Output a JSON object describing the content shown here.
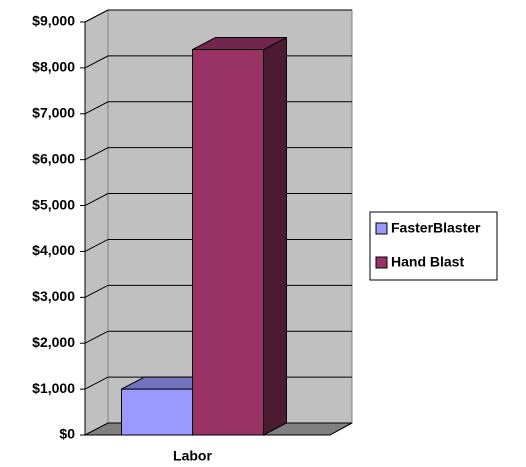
{
  "chart_data": {
    "type": "bar3d",
    "categories": [
      "Labor"
    ],
    "series": [
      {
        "name": "FasterBlaster",
        "color": "#9999ff",
        "values": [
          1000
        ]
      },
      {
        "name": "Hand Blast",
        "color": "#993366",
        "values": [
          8400
        ]
      }
    ],
    "ylim": [
      0,
      9000
    ],
    "yticks": [
      {
        "value": 0,
        "label": "$0"
      },
      {
        "value": 1000,
        "label": "$1,000"
      },
      {
        "value": 2000,
        "label": "$2,000"
      },
      {
        "value": 3000,
        "label": "$3,000"
      },
      {
        "value": 4000,
        "label": "$4,000"
      },
      {
        "value": 5000,
        "label": "$5,000"
      },
      {
        "value": 6000,
        "label": "$6,000"
      },
      {
        "value": 7000,
        "label": "$7,000"
      },
      {
        "value": 8000,
        "label": "$8,000"
      },
      {
        "value": 9000,
        "label": "$9,000"
      }
    ],
    "grid": true,
    "legend": "right"
  }
}
